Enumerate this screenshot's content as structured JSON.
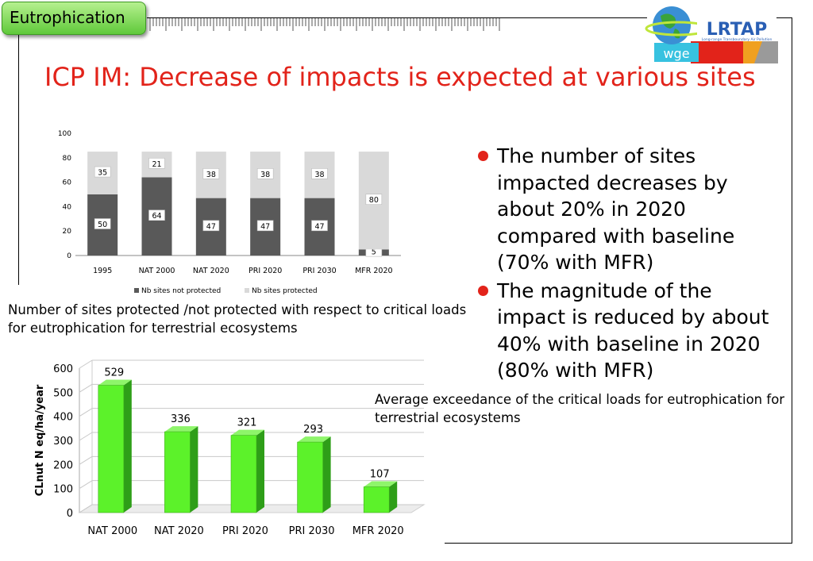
{
  "section_tag": "Eutrophication",
  "title": "ICP IM: Decrease of impacts is expected at various sites",
  "logo": {
    "text": "LRTAP",
    "subtitle": "Long-range Transboundary Air Pollution",
    "badge": "wge",
    "colors": {
      "blue": "#2a5fb4",
      "green": "#3aa33a",
      "red": "#e2231a",
      "orange": "#f0a020"
    }
  },
  "bullets": [
    "The number of sites impacted decreases by about 20% in 2020 compared with baseline (70% with MFR)",
    "The magnitude of the impact is reduced by about 40% with baseline in 2020 (80% with MFR)"
  ],
  "caption1": "Number of sites protected /not protected with respect to critical loads for eutrophication for terrestrial ecosystems",
  "caption2": "Average exceedance of the critical loads for eutrophication for terrestrial ecosystems",
  "chart_data": [
    {
      "type": "bar",
      "stacked": true,
      "categories": [
        "1995",
        "NAT 2000",
        "NAT 2020",
        "PRI 2020",
        "PRI 2030",
        "MFR 2020"
      ],
      "series": [
        {
          "name": "Nb sites not protected",
          "values": [
            50,
            64,
            47,
            47,
            47,
            5
          ],
          "color": "#595959"
        },
        {
          "name": "Nb sites protected",
          "values": [
            35,
            21,
            38,
            38,
            38,
            80
          ],
          "color": "#d9d9d9"
        }
      ],
      "yticks": [
        0,
        20,
        40,
        60,
        80,
        100
      ],
      "ylim": [
        0,
        100
      ],
      "legend": "bottom",
      "grid": false
    },
    {
      "type": "bar",
      "style": "3d",
      "categories": [
        "NAT 2000",
        "NAT 2020",
        "PRI 2020",
        "PRI 2030",
        "MFR 2020"
      ],
      "values": [
        529,
        336,
        321,
        293,
        107
      ],
      "ylabel": "CLnut N eq/ha/year",
      "yticks": [
        0,
        100,
        200,
        300,
        400,
        500,
        600
      ],
      "ylim": [
        0,
        600
      ],
      "grid": true,
      "color": "#5cf22a"
    }
  ]
}
